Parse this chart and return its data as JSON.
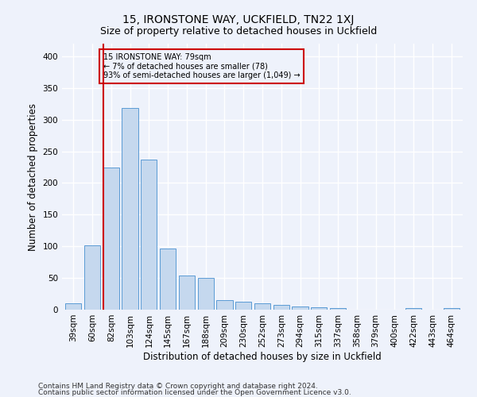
{
  "title": "15, IRONSTONE WAY, UCKFIELD, TN22 1XJ",
  "subtitle": "Size of property relative to detached houses in Uckfield",
  "xlabel": "Distribution of detached houses by size in Uckfield",
  "ylabel": "Number of detached properties",
  "categories": [
    "39sqm",
    "60sqm",
    "82sqm",
    "103sqm",
    "124sqm",
    "145sqm",
    "167sqm",
    "188sqm",
    "209sqm",
    "230sqm",
    "252sqm",
    "273sqm",
    "294sqm",
    "315sqm",
    "337sqm",
    "358sqm",
    "379sqm",
    "400sqm",
    "422sqm",
    "443sqm",
    "464sqm"
  ],
  "values": [
    10,
    102,
    224,
    319,
    237,
    96,
    54,
    50,
    15,
    13,
    10,
    7,
    5,
    4,
    3,
    0,
    0,
    0,
    3,
    0,
    3
  ],
  "bar_color": "#c5d8ee",
  "bar_edge_color": "#5b9bd5",
  "highlight_bar_index": 2,
  "highlight_line_color": "#cc0000",
  "ylim": [
    0,
    420
  ],
  "yticks": [
    0,
    50,
    100,
    150,
    200,
    250,
    300,
    350,
    400
  ],
  "annotation_text": "15 IRONSTONE WAY: 79sqm\n← 7% of detached houses are smaller (78)\n93% of semi-detached houses are larger (1,049) →",
  "annotation_box_color": "#cc0000",
  "footnote1": "Contains HM Land Registry data © Crown copyright and database right 2024.",
  "footnote2": "Contains public sector information licensed under the Open Government Licence v3.0.",
  "background_color": "#eef2fb",
  "grid_color": "#ffffff",
  "title_fontsize": 10,
  "subtitle_fontsize": 9,
  "axis_label_fontsize": 8.5,
  "tick_fontsize": 7.5,
  "footnote_fontsize": 6.5
}
